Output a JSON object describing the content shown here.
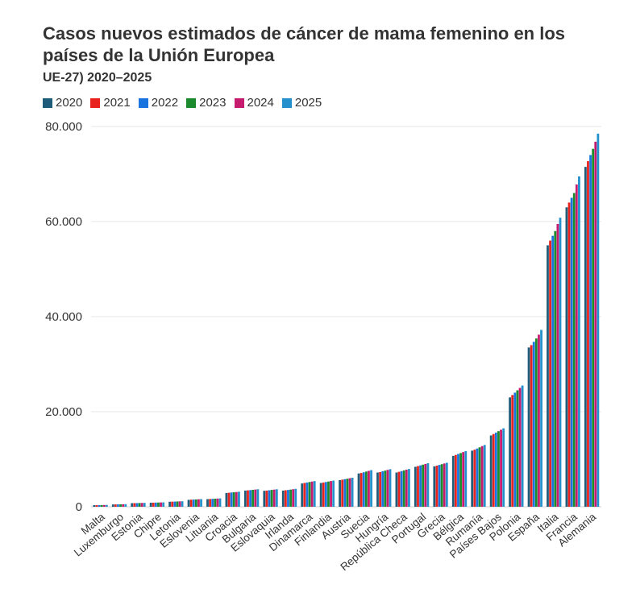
{
  "chart_data": {
    "type": "bar",
    "title": "Casos nuevos estimados de cáncer de mama femenino en los países de la Unión Europea",
    "subtitle": "UE-27) 2020–2025",
    "xlabel": "",
    "ylabel": "",
    "ylim": [
      0,
      80000
    ],
    "yticks": [
      0,
      20000,
      40000,
      60000,
      80000
    ],
    "ytick_labels": [
      "0",
      "20.000",
      "40.000",
      "60.000",
      "80.000"
    ],
    "grid": true,
    "legend_position": "top-left",
    "categories": [
      "Malta",
      "Luxemburgo",
      "Estonia",
      "Chipre",
      "Letonia",
      "Eslovenia",
      "Lituania",
      "Croacia",
      "Bulgaria",
      "Eslovaquia",
      "Irlanda",
      "Dinamarca",
      "Finlandia",
      "Austria",
      "Suecia",
      "Hungría",
      "República Checa",
      "Portugal",
      "Grecia",
      "Bélgica",
      "Rumanía",
      "Países Bajos",
      "Polonia",
      "España",
      "Italia",
      "Francia",
      "Alemania"
    ],
    "series": [
      {
        "name": "2020",
        "color": "#1f5c7a",
        "values": [
          330,
          480,
          750,
          850,
          1050,
          1450,
          1600,
          2900,
          3400,
          3350,
          3400,
          4900,
          5000,
          5600,
          7000,
          7200,
          7200,
          8400,
          8500,
          10700,
          11800,
          15000,
          23000,
          33500,
          55000,
          63000,
          71500
        ]
      },
      {
        "name": "2021",
        "color": "#e8221c",
        "values": [
          340,
          490,
          760,
          860,
          1070,
          1480,
          1630,
          2950,
          3450,
          3400,
          3470,
          5000,
          5100,
          5700,
          7100,
          7300,
          7350,
          8550,
          8650,
          10900,
          12000,
          15300,
          23500,
          34000,
          56000,
          64000,
          72700
        ]
      },
      {
        "name": "2022",
        "color": "#1a74e0",
        "values": [
          350,
          500,
          770,
          875,
          1090,
          1510,
          1660,
          3000,
          3500,
          3470,
          3540,
          5100,
          5200,
          5800,
          7250,
          7450,
          7500,
          8700,
          8800,
          11100,
          12250,
          15600,
          24000,
          34700,
          57000,
          65000,
          74000
        ]
      },
      {
        "name": "2023",
        "color": "#1a8a2c",
        "values": [
          360,
          510,
          785,
          890,
          1110,
          1540,
          1690,
          3050,
          3560,
          3540,
          3610,
          5200,
          5300,
          5900,
          7400,
          7600,
          7650,
          8850,
          8950,
          11300,
          12500,
          15900,
          24500,
          35400,
          58000,
          66000,
          75300
        ]
      },
      {
        "name": "2024",
        "color": "#c51a6e",
        "values": [
          370,
          520,
          800,
          905,
          1130,
          1570,
          1720,
          3100,
          3620,
          3610,
          3690,
          5300,
          5400,
          6000,
          7550,
          7750,
          7800,
          9000,
          9100,
          11500,
          12750,
          16200,
          25000,
          36200,
          59500,
          67800,
          76800
        ]
      },
      {
        "name": "2025",
        "color": "#2491cc",
        "values": [
          380,
          535,
          815,
          920,
          1150,
          1600,
          1750,
          3150,
          3680,
          3680,
          3770,
          5400,
          5500,
          6100,
          7700,
          7900,
          7950,
          9150,
          9250,
          11700,
          13000,
          16500,
          25500,
          37200,
          60800,
          69500,
          78500
        ]
      }
    ]
  }
}
